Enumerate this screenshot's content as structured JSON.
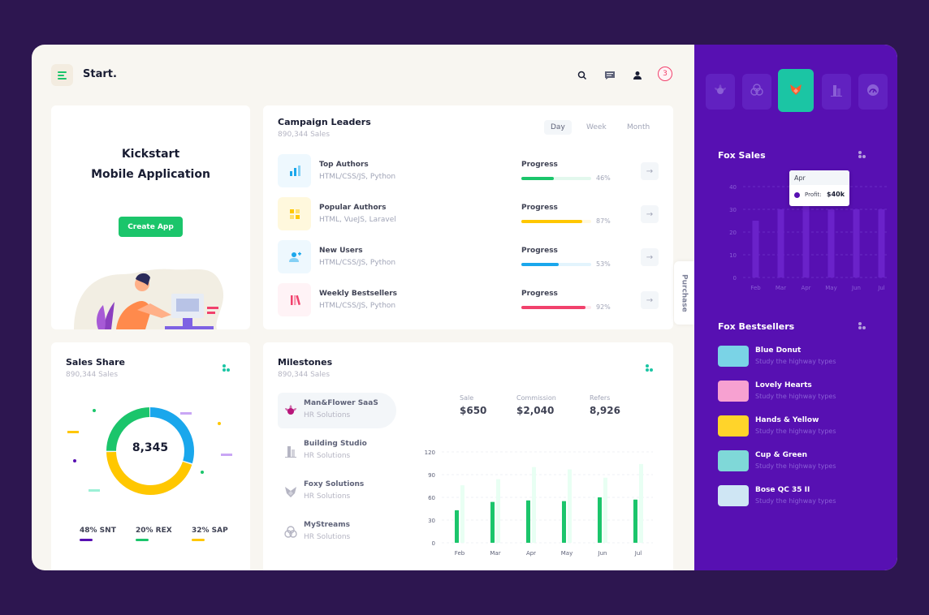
{
  "colors": {
    "page_bg": "#2d1650",
    "aside_bg": "#5710b2",
    "green": "#1bc56b",
    "yellow": "#ffc700",
    "blue": "#1aa7ec",
    "pink": "#f1416c",
    "purple": "#5710b2",
    "teal": "#1bc5a4"
  },
  "header": {
    "brand": "Start.",
    "notification_count": "3",
    "icons": [
      "menu-icon",
      "search-icon",
      "chat-icon",
      "user-icon"
    ]
  },
  "kickstart": {
    "title_line1": "Kickstart",
    "title_line2": "Mobile Application",
    "button": "Create App"
  },
  "campaign": {
    "title": "Campaign Leaders",
    "subtitle": "890,344 Sales",
    "tabs": [
      "Day",
      "Week",
      "Month"
    ],
    "active_tab": "Day",
    "rows": [
      {
        "title": "Top Authors",
        "sub": "HTML/CSS/JS, Python",
        "progress_label": "Progress",
        "percent": 46,
        "percent_text": "46%",
        "color": "#1bc56b",
        "icon": "chart-icon",
        "icon_color": "#1aa7ec",
        "icon_bg": "#eef8fe"
      },
      {
        "title": "Popular Authors",
        "sub": "HTML, VueJS, Laravel",
        "progress_label": "Progress",
        "percent": 87,
        "percent_text": "87%",
        "color": "#ffc700",
        "icon": "grid-icon",
        "icon_color": "#ffc700",
        "icon_bg": "#fff8dd"
      },
      {
        "title": "New Users",
        "sub": "HTML/CSS/JS, Python",
        "progress_label": "Progress",
        "percent": 53,
        "percent_text": "53%",
        "color": "#1aa7ec",
        "icon": "add-user-icon",
        "icon_color": "#1aa7ec",
        "icon_bg": "#eef8fe"
      },
      {
        "title": "Weekly Bestsellers",
        "sub": "HTML/CSS/JS, Python",
        "progress_label": "Progress",
        "percent": 92,
        "percent_text": "92%",
        "color": "#f1416c",
        "icon": "books-icon",
        "icon_color": "#f1416c",
        "icon_bg": "#fff3f6"
      }
    ]
  },
  "purchase": {
    "label": "Purchase"
  },
  "sales_share": {
    "title": "Sales Share",
    "subtitle": "890,344 Sales",
    "center_value": "8,345",
    "segments": [
      {
        "label": "48% SNT",
        "percent": 48,
        "color": "#5710b2"
      },
      {
        "label": "20% REX",
        "percent": 20,
        "color": "#1bc56b"
      },
      {
        "label": "32% SAP",
        "percent": 32,
        "color": "#ffc700"
      }
    ],
    "ring_segments": [
      {
        "percent": 30,
        "color": "#1aa7ec"
      },
      {
        "percent": 45,
        "color": "#ffc700"
      },
      {
        "percent": 25,
        "color": "#1bc56b"
      }
    ]
  },
  "milestones": {
    "title": "Milestones",
    "subtitle": "890,344 Sales",
    "items": [
      {
        "name": "Man&Flower SaaS",
        "sub": "HR Solutions",
        "icon": "flower-icon",
        "active": true
      },
      {
        "name": "Building Studio",
        "sub": "HR Solutions",
        "icon": "building-icon",
        "active": false
      },
      {
        "name": "Foxy Solutions",
        "sub": "HR Solutions",
        "icon": "fox-icon",
        "active": false
      },
      {
        "name": "MyStreams",
        "sub": "HR Solutions",
        "icon": "streams-icon",
        "active": false
      }
    ],
    "stats": [
      {
        "label": "Sale",
        "value": "$650"
      },
      {
        "label": "Commission",
        "value": "$2,040"
      },
      {
        "label": "Refers",
        "value": "8,926"
      }
    ]
  },
  "aside": {
    "tiles": [
      "flower-icon",
      "streams-icon",
      "fox-icon",
      "building-icon",
      "dashboard-icon"
    ],
    "active_tile": 2,
    "fox_sales_title": "Fox Sales",
    "tooltip": {
      "month": "Apr",
      "label": "Profit:",
      "value": "$40k"
    },
    "bestsellers_title": "Fox Bestsellers",
    "bestsellers": [
      {
        "name": "Blue Donut",
        "sub": "Study the highway types",
        "thumb": "#7ad3e6"
      },
      {
        "name": "Lovely Hearts",
        "sub": "Study the highway types",
        "thumb": "#f7a1d1"
      },
      {
        "name": "Hands & Yellow",
        "sub": "Study the highway types",
        "thumb": "#ffd42a"
      },
      {
        "name": "Cup & Green",
        "sub": "Study the highway types",
        "thumb": "#7fd8d8"
      },
      {
        "name": "Bose QC 35 II",
        "sub": "Study the highway types",
        "thumb": "#cfe6f4"
      }
    ]
  },
  "chart_data": [
    {
      "type": "bar",
      "title": "",
      "categories": [
        "Feb",
        "Mar",
        "Apr",
        "May",
        "Jun",
        "Jul"
      ],
      "ylim": [
        0,
        120
      ],
      "yticks": [
        0,
        30,
        60,
        90,
        120
      ],
      "series": [
        {
          "values": [
            43,
            54,
            56,
            55,
            60,
            57
          ],
          "color": "#1bc56b"
        },
        {
          "values": [
            76,
            84,
            100,
            97,
            86,
            104
          ],
          "color": "#e8fff3"
        }
      ],
      "grid": true,
      "legend": "none"
    },
    {
      "type": "bar",
      "title": "Fox Sales",
      "categories": [
        "Feb",
        "Mar",
        "Apr",
        "May",
        "Jun",
        "Jul"
      ],
      "ylim": [
        0,
        40
      ],
      "yticks": [
        0,
        10,
        20,
        30,
        40
      ],
      "series": [
        {
          "values": [
            25,
            30,
            40,
            30,
            30,
            30
          ],
          "color": "#6a22c9"
        }
      ],
      "grid": true,
      "legend": "none"
    }
  ]
}
